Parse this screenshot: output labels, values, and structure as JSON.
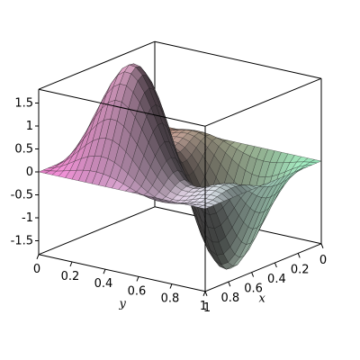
{
  "chart_data": {
    "type": "surface",
    "x_axis": {
      "label": "x",
      "range": [
        0,
        1
      ],
      "ticks": [
        {
          "value": 1,
          "label": "1"
        },
        {
          "value": 0.8,
          "label": "0.8"
        },
        {
          "value": 0.6,
          "label": "0.6"
        },
        {
          "value": 0.4,
          "label": "0.4"
        },
        {
          "value": 0.2,
          "label": "0.2"
        },
        {
          "value": 0,
          "label": "0"
        }
      ]
    },
    "y_axis": {
      "label": "y",
      "range": [
        0,
        1
      ],
      "ticks": [
        {
          "value": 0,
          "label": "0"
        },
        {
          "value": 0.2,
          "label": "0.2"
        },
        {
          "value": 0.4,
          "label": "0.4"
        },
        {
          "value": 0.6,
          "label": "0.6"
        },
        {
          "value": 0.8,
          "label": "0.8"
        },
        {
          "value": 1,
          "label": "1"
        }
      ]
    },
    "z_axis": {
      "range": [
        -1.8,
        1.8
      ],
      "ticks": [
        {
          "value": 1.5,
          "label": "1.5"
        },
        {
          "value": 1,
          "label": "1"
        },
        {
          "value": 0.5,
          "label": "0.5"
        },
        {
          "value": 0,
          "label": "0"
        },
        {
          "value": -0.5,
          "label": "-0.5"
        },
        {
          "value": -1,
          "label": "-1"
        },
        {
          "value": -1.5,
          "label": "-1.5"
        }
      ]
    },
    "approx_function": "z = (sin(2*pi*x) + sin(2*pi*y)) * sin(pi*x) * sin(pi*y) * 1.75",
    "grid_resolution": 25,
    "bounding_box": true,
    "grid": false,
    "legend": "none"
  },
  "colors": {
    "corner_x0_y0": "#e07ac4",
    "corner_x1_y0": "#d8d8e4",
    "corner_x0_y1": "#b07a6a",
    "corner_x1_y1": "#8fe0b4",
    "box": "#000000",
    "mesh": "#1a1a1a"
  }
}
